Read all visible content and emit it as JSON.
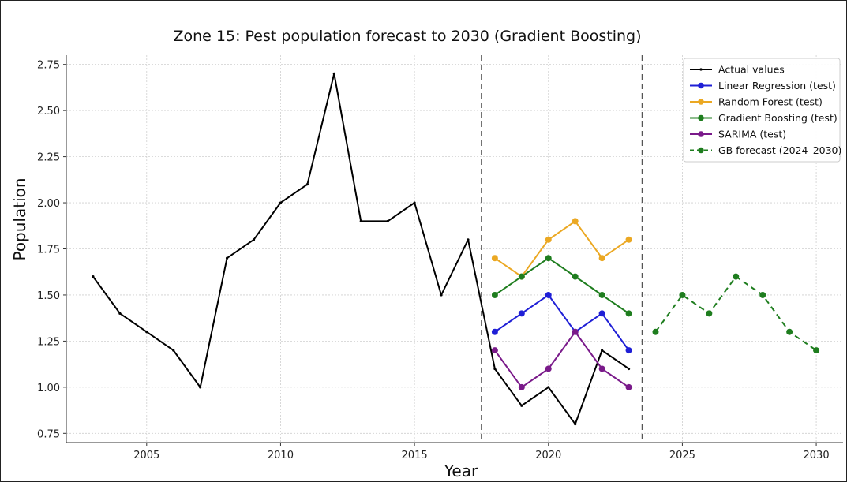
{
  "chart_data": {
    "type": "line",
    "title": "Zone 15: Pest population forecast to 2030 (Gradient Boosting)",
    "xlabel": "Year",
    "ylabel": "Population",
    "xlim": [
      2002,
      2031
    ],
    "ylim": [
      0.7,
      2.8
    ],
    "xticks": [
      2005,
      2010,
      2015,
      2020,
      2025,
      2030
    ],
    "yticks": [
      0.75,
      1.0,
      1.25,
      1.5,
      1.75,
      2.0,
      2.25,
      2.5,
      2.75
    ],
    "grid": true,
    "legend_position": "top-right",
    "vlines": [
      2017.5,
      2023.5
    ],
    "series": [
      {
        "name": "Actual values",
        "color": "#000000",
        "style": "solid",
        "marker": "small-dot",
        "x": [
          2003,
          2004,
          2005,
          2006,
          2007,
          2008,
          2009,
          2010,
          2011,
          2012,
          2013,
          2014,
          2015,
          2016,
          2017,
          2018,
          2019,
          2020,
          2021,
          2022,
          2023
        ],
        "y": [
          1.6,
          1.4,
          1.3,
          1.2,
          1.0,
          1.7,
          1.8,
          2.0,
          2.1,
          2.7,
          1.9,
          1.9,
          2.0,
          1.5,
          1.8,
          1.1,
          0.9,
          1.0,
          0.8,
          1.2,
          1.1
        ]
      },
      {
        "name": "Linear Regression (test)",
        "color": "#1f1fd6",
        "style": "solid",
        "marker": "dot",
        "x": [
          2018,
          2019,
          2020,
          2021,
          2022,
          2023
        ],
        "y": [
          1.3,
          1.4,
          1.5,
          1.3,
          1.4,
          1.2
        ]
      },
      {
        "name": "Random Forest (test)",
        "color": "#eba823",
        "style": "solid",
        "marker": "dot",
        "x": [
          2018,
          2019,
          2020,
          2021,
          2022,
          2023
        ],
        "y": [
          1.7,
          1.6,
          1.8,
          1.9,
          1.7,
          1.8
        ]
      },
      {
        "name": "Gradient Boosting (test)",
        "color": "#1e7d1e",
        "style": "solid",
        "marker": "dot",
        "x": [
          2018,
          2019,
          2020,
          2021,
          2022,
          2023
        ],
        "y": [
          1.5,
          1.6,
          1.7,
          1.6,
          1.5,
          1.4
        ]
      },
      {
        "name": "SARIMA (test)",
        "color": "#7a1a8a",
        "style": "solid",
        "marker": "dot",
        "x": [
          2018,
          2019,
          2020,
          2021,
          2022,
          2023
        ],
        "y": [
          1.2,
          1.0,
          1.1,
          1.3,
          1.1,
          1.0
        ]
      },
      {
        "name": "GB forecast (2024–2030)",
        "color": "#1e7d1e",
        "style": "dashed",
        "marker": "dot",
        "x": [
          2024,
          2025,
          2026,
          2027,
          2028,
          2029,
          2030
        ],
        "y": [
          1.3,
          1.5,
          1.4,
          1.6,
          1.5,
          1.3,
          1.2
        ]
      }
    ]
  }
}
